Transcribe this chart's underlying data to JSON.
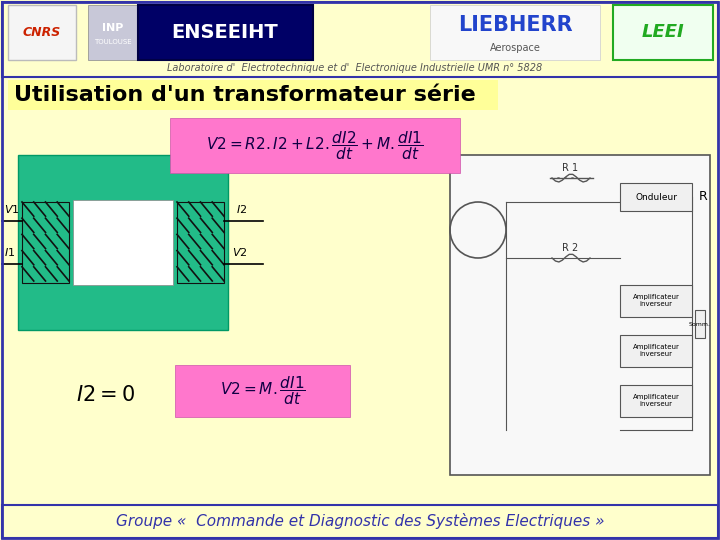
{
  "bg_color": "#ffffcc",
  "border_color": "#3333aa",
  "title": "Utilisation d'un transformateur série",
  "title_color": "#000000",
  "title_fontsize": 16,
  "header_subtitle": "Laboratoire d'  Electrotechnique et d'  Electronique Industrielle UMR n° 5828",
  "header_subtitle_color": "#555555",
  "header_subtitle_fontsize": 7,
  "footer_text": "Groupe «  Commande et Diagnostic des Systèmes Electriques »",
  "footer_color": "#3333aa",
  "footer_fontsize": 11,
  "formula_bg": "#ff77cc",
  "formula_fontsize": 11,
  "tfo_color": "#22bb88",
  "tfo_inner_color": "#ffffff",
  "coil_color": "#111111",
  "title_bg": "#ffff99",
  "circuit_border": "#555555",
  "circuit_bg": "#f8f8f8"
}
